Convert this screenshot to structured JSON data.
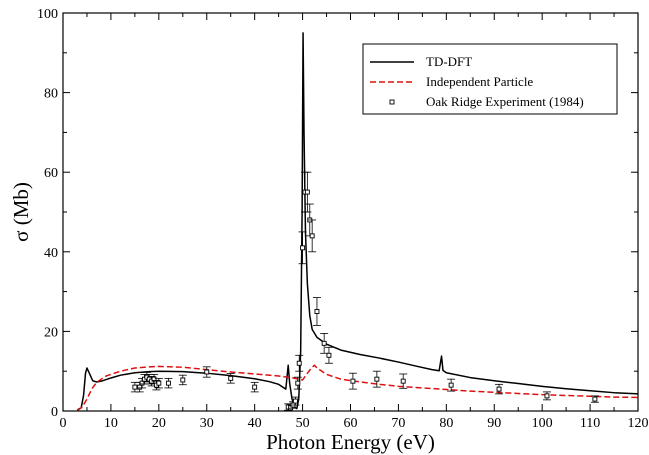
{
  "chart_data": {
    "type": "line",
    "title": "",
    "xlabel": "Photon Energy (eV)",
    "ylabel": "σ (Mb)",
    "xlim": [
      0,
      120
    ],
    "ylim": [
      0,
      100
    ],
    "xticks": [
      0,
      10,
      20,
      30,
      40,
      50,
      60,
      70,
      80,
      90,
      100,
      110,
      120
    ],
    "yticks": [
      0,
      20,
      40,
      60,
      80,
      100
    ],
    "grid": false,
    "legend_position": "top-right",
    "series": [
      {
        "name": "TD-DFT",
        "style": "solid",
        "color": "#000000",
        "points": [
          [
            3,
            0.3
          ],
          [
            3.8,
            0.8
          ],
          [
            4.3,
            4
          ],
          [
            4.7,
            9.5
          ],
          [
            5.0,
            10.8
          ],
          [
            5.5,
            9.5
          ],
          [
            6.2,
            7.6
          ],
          [
            7,
            7.3
          ],
          [
            8,
            7.5
          ],
          [
            10,
            8.3
          ],
          [
            12,
            9.0
          ],
          [
            15,
            9.6
          ],
          [
            18,
            9.9
          ],
          [
            20,
            10.0
          ],
          [
            25,
            9.9
          ],
          [
            30,
            9.5
          ],
          [
            35,
            8.9
          ],
          [
            40,
            8.1
          ],
          [
            43,
            7.4
          ],
          [
            45,
            6.7
          ],
          [
            46.5,
            5.5
          ],
          [
            47.0,
            11.5
          ],
          [
            47.3,
            7.0
          ],
          [
            47.8,
            3.0
          ],
          [
            48.3,
            1.0
          ],
          [
            48.8,
            0.6
          ],
          [
            49.2,
            3
          ],
          [
            49.6,
            15
          ],
          [
            49.9,
            50
          ],
          [
            50.1,
            95
          ],
          [
            50.3,
            70
          ],
          [
            50.6,
            45
          ],
          [
            51.0,
            32
          ],
          [
            51.5,
            24
          ],
          [
            52.0,
            20.5
          ],
          [
            53,
            18.5
          ],
          [
            55,
            16.8
          ],
          [
            58,
            15.3
          ],
          [
            62,
            14.2
          ],
          [
            66,
            13.3
          ],
          [
            70,
            12.3
          ],
          [
            74,
            11.2
          ],
          [
            77,
            10.4
          ],
          [
            78.5,
            10.1
          ],
          [
            79,
            13.8
          ],
          [
            79.3,
            10.2
          ],
          [
            80,
            9.6
          ],
          [
            85,
            8.4
          ],
          [
            90,
            7.6
          ],
          [
            95,
            6.9
          ],
          [
            100,
            6.2
          ],
          [
            105,
            5.6
          ],
          [
            110,
            5.1
          ],
          [
            115,
            4.6
          ],
          [
            120,
            4.3
          ]
        ]
      },
      {
        "name": "Independent Particle",
        "style": "dashed",
        "color": "#dd1111",
        "points": [
          [
            3,
            0.1
          ],
          [
            4,
            1
          ],
          [
            5,
            3
          ],
          [
            6,
            5.5
          ],
          [
            7,
            7.2
          ],
          [
            9,
            8.8
          ],
          [
            12,
            10.0
          ],
          [
            15,
            10.8
          ],
          [
            18,
            11.1
          ],
          [
            20,
            11.2
          ],
          [
            25,
            11.0
          ],
          [
            30,
            10.4
          ],
          [
            35,
            9.8
          ],
          [
            40,
            9.3
          ],
          [
            45,
            8.8
          ],
          [
            48,
            8.3
          ],
          [
            50,
            7.8
          ],
          [
            51,
            9.5
          ],
          [
            52,
            11.0
          ],
          [
            52.5,
            11.5
          ],
          [
            53,
            10.8
          ],
          [
            55,
            9.2
          ],
          [
            58,
            8.0
          ],
          [
            62,
            7.3
          ],
          [
            66,
            6.7
          ],
          [
            70,
            6.2
          ],
          [
            75,
            5.8
          ],
          [
            80,
            5.4
          ],
          [
            85,
            5.0
          ],
          [
            90,
            4.7
          ],
          [
            95,
            4.4
          ],
          [
            100,
            4.1
          ],
          [
            105,
            3.9
          ],
          [
            110,
            3.7
          ],
          [
            115,
            3.5
          ],
          [
            120,
            3.4
          ]
        ]
      },
      {
        "name": "Oak Ridge Experiment (1984)",
        "style": "markers",
        "color": "#000000",
        "points": [
          [
            15,
            6,
            1.2
          ],
          [
            16,
            6,
            1.2
          ],
          [
            16.5,
            7,
            1.2
          ],
          [
            17,
            8,
            1.2
          ],
          [
            17.5,
            8.5,
            1.2
          ],
          [
            18,
            8,
            1.2
          ],
          [
            18.5,
            7.5,
            1.2
          ],
          [
            19,
            8,
            1.2
          ],
          [
            19.5,
            6.5,
            1.2
          ],
          [
            20,
            7,
            1.2
          ],
          [
            22,
            7,
            1.2
          ],
          [
            25,
            7.8,
            1.2
          ],
          [
            30,
            9.8,
            1.3
          ],
          [
            35,
            8.2,
            1.2
          ],
          [
            40,
            6,
            1.2
          ],
          [
            47,
            1,
            0.8
          ],
          [
            47.5,
            0.8,
            0.8
          ],
          [
            48,
            1.5,
            0.8
          ],
          [
            48.5,
            2.5,
            1
          ],
          [
            49,
            7,
            1.5
          ],
          [
            49.3,
            12,
            2
          ],
          [
            50,
            41,
            4
          ],
          [
            50.5,
            55,
            5
          ],
          [
            51,
            55,
            5
          ],
          [
            51.5,
            48,
            4
          ],
          [
            52,
            44,
            4
          ],
          [
            53,
            25,
            3.5
          ],
          [
            54.5,
            17,
            2.5
          ],
          [
            55.5,
            14,
            2
          ],
          [
            60.5,
            7.5,
            2
          ],
          [
            65.5,
            8,
            2
          ],
          [
            71,
            7.5,
            1.8
          ],
          [
            81,
            6.5,
            1.5
          ],
          [
            91,
            5.5,
            1.2
          ],
          [
            101,
            3.8,
            1
          ],
          [
            111,
            3,
            0.8
          ]
        ]
      }
    ]
  }
}
